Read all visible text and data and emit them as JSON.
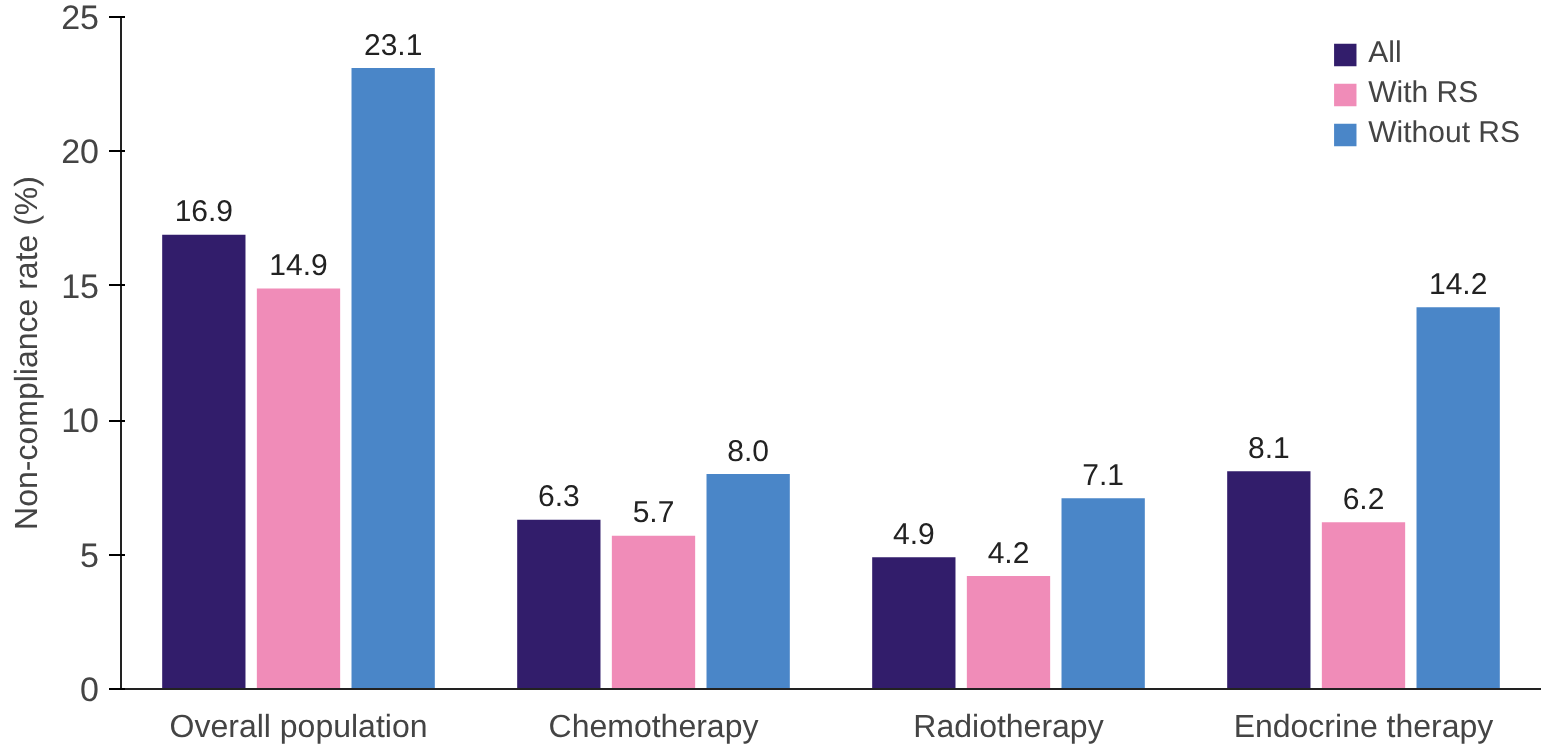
{
  "chart_data": {
    "type": "bar",
    "ylabel": "Non-compliance rate (%)",
    "categories": [
      "Overall population",
      "Chemotherapy",
      "Radiotherapy",
      "Endocrine therapy"
    ],
    "series": [
      {
        "name": "All",
        "color": "#321d6b",
        "values": [
          16.9,
          6.3,
          4.9,
          8.1
        ],
        "value_labels": [
          "16.9",
          "6.3",
          "4.9",
          "8.1"
        ]
      },
      {
        "name": "With RS",
        "color": "#f08cb8",
        "values": [
          14.9,
          5.7,
          4.2,
          6.2
        ],
        "value_labels": [
          "14.9",
          "5.7",
          "4.2",
          "6.2"
        ]
      },
      {
        "name": "Without RS",
        "color": "#4a86c8",
        "values": [
          23.1,
          8.0,
          7.1,
          14.2
        ],
        "value_labels": [
          "23.1",
          "8.0",
          "7.1",
          "14.2"
        ]
      }
    ],
    "ylim": [
      0,
      25
    ],
    "yticks": [
      0,
      5,
      10,
      15,
      20,
      25
    ],
    "legend": "top right",
    "grid": false
  }
}
